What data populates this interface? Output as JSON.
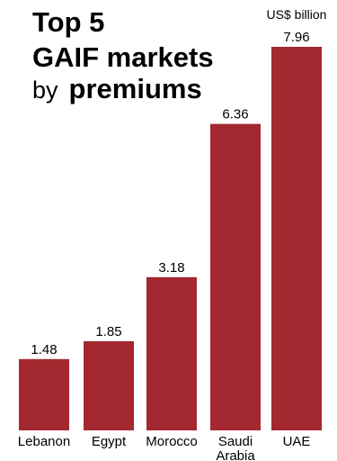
{
  "title": {
    "line1": "Top 5",
    "line2": "GAIF markets",
    "line3_prefix": "by",
    "line3_emph": "premiums"
  },
  "chart_data": {
    "type": "bar",
    "categories": [
      "Lebanon",
      "Egypt",
      "Morocco",
      "Saudi Arabia",
      "UAE"
    ],
    "values": [
      1.48,
      1.85,
      3.18,
      6.36,
      7.96
    ],
    "value_labels": [
      "1.48",
      "1.85",
      "3.18",
      "6.36",
      "7.96"
    ],
    "unit": "US$ billion",
    "ylim": [
      0,
      7.96
    ],
    "grid": false,
    "bar_color": "#A4282F"
  }
}
